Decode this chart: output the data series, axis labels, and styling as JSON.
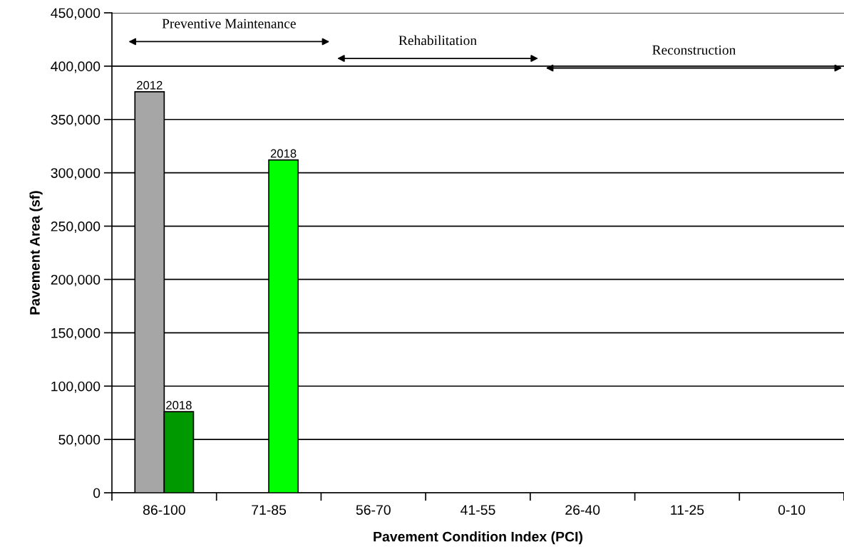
{
  "chart_data": {
    "type": "bar",
    "xlabel": "Pavement Condition Index (PCI)",
    "ylabel": "Pavement Area (sf)",
    "categories": [
      "86-100",
      "71-85",
      "56-70",
      "41-55",
      "26-40",
      "11-25",
      "0-10"
    ],
    "series": [
      {
        "name": "2012",
        "color": "#a6a6a6",
        "values": [
          376000,
          null,
          null,
          null,
          null,
          null,
          null
        ]
      },
      {
        "name": "2018",
        "colors": [
          "#009900",
          "#00ff00",
          null,
          null,
          null,
          null,
          null
        ],
        "values": [
          76000,
          312000,
          null,
          null,
          null,
          null,
          null
        ]
      }
    ],
    "ylim": [
      0,
      450000
    ],
    "yticks": [
      {
        "value": 0,
        "label": "0"
      },
      {
        "value": 50000,
        "label": "50,000"
      },
      {
        "value": 100000,
        "label": "100,000"
      },
      {
        "value": 150000,
        "label": "150,000"
      },
      {
        "value": 200000,
        "label": "200,000"
      },
      {
        "value": 250000,
        "label": "250,000"
      },
      {
        "value": 300000,
        "label": "300,000"
      },
      {
        "value": 350000,
        "label": "350,000"
      },
      {
        "value": 400000,
        "label": "400,000"
      },
      {
        "value": 450000,
        "label": "450,000"
      }
    ],
    "grid": "y",
    "legend": false,
    "annotations": [
      "Preventive Maintenance",
      "Rehabilitation",
      "Reconstruction"
    ]
  }
}
